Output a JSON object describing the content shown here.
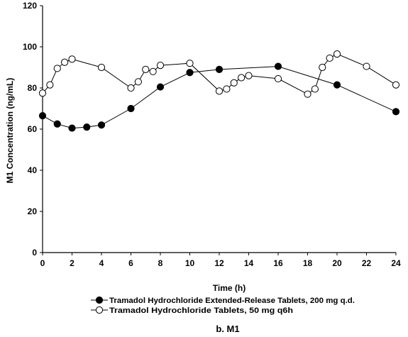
{
  "chart_data": {
    "type": "line",
    "title": "",
    "caption": "b. M1",
    "xlabel": "Time (h)",
    "ylabel": "M1 Concentration (ng/mL)",
    "xlim": [
      0,
      24
    ],
    "ylim": [
      0,
      120
    ],
    "x_ticks": [
      "0",
      "2",
      "4",
      "6",
      "8",
      "10",
      "12",
      "14",
      "16",
      "18",
      "20",
      "22",
      "24"
    ],
    "y_ticks": [
      "0",
      "20",
      "40",
      "60",
      "80",
      "100",
      "120"
    ],
    "grid": false,
    "legend_position": "bottom",
    "series": [
      {
        "name": "Tramadol Hydrochloride Extended-Release Tablets, 200 mg q.d.",
        "marker": "filled-circle",
        "x": [
          0,
          1,
          2,
          3,
          4,
          6,
          8,
          10,
          12,
          16,
          20,
          24
        ],
        "y": [
          66.5,
          62.5,
          60.5,
          61.0,
          62.0,
          70.0,
          80.5,
          87.5,
          89.0,
          90.5,
          81.5,
          68.5
        ]
      },
      {
        "name": "Tramadol Hydrochloride Tablets, 50 mg q6h",
        "marker": "open-circle",
        "x": [
          0,
          0.5,
          1,
          1.5,
          2,
          4,
          6,
          6.5,
          7,
          7.5,
          8,
          10,
          12,
          12.5,
          13,
          13.5,
          14,
          16,
          18,
          18.5,
          19,
          19.5,
          20,
          22,
          24
        ],
        "y": [
          77.5,
          81.5,
          89.5,
          92.5,
          94.0,
          90.0,
          80.0,
          83.0,
          89.0,
          88.0,
          91.0,
          92.0,
          78.5,
          79.5,
          82.5,
          85.0,
          86.0,
          84.5,
          77.0,
          79.5,
          90.0,
          94.5,
          96.5,
          90.5,
          81.5
        ]
      }
    ]
  }
}
